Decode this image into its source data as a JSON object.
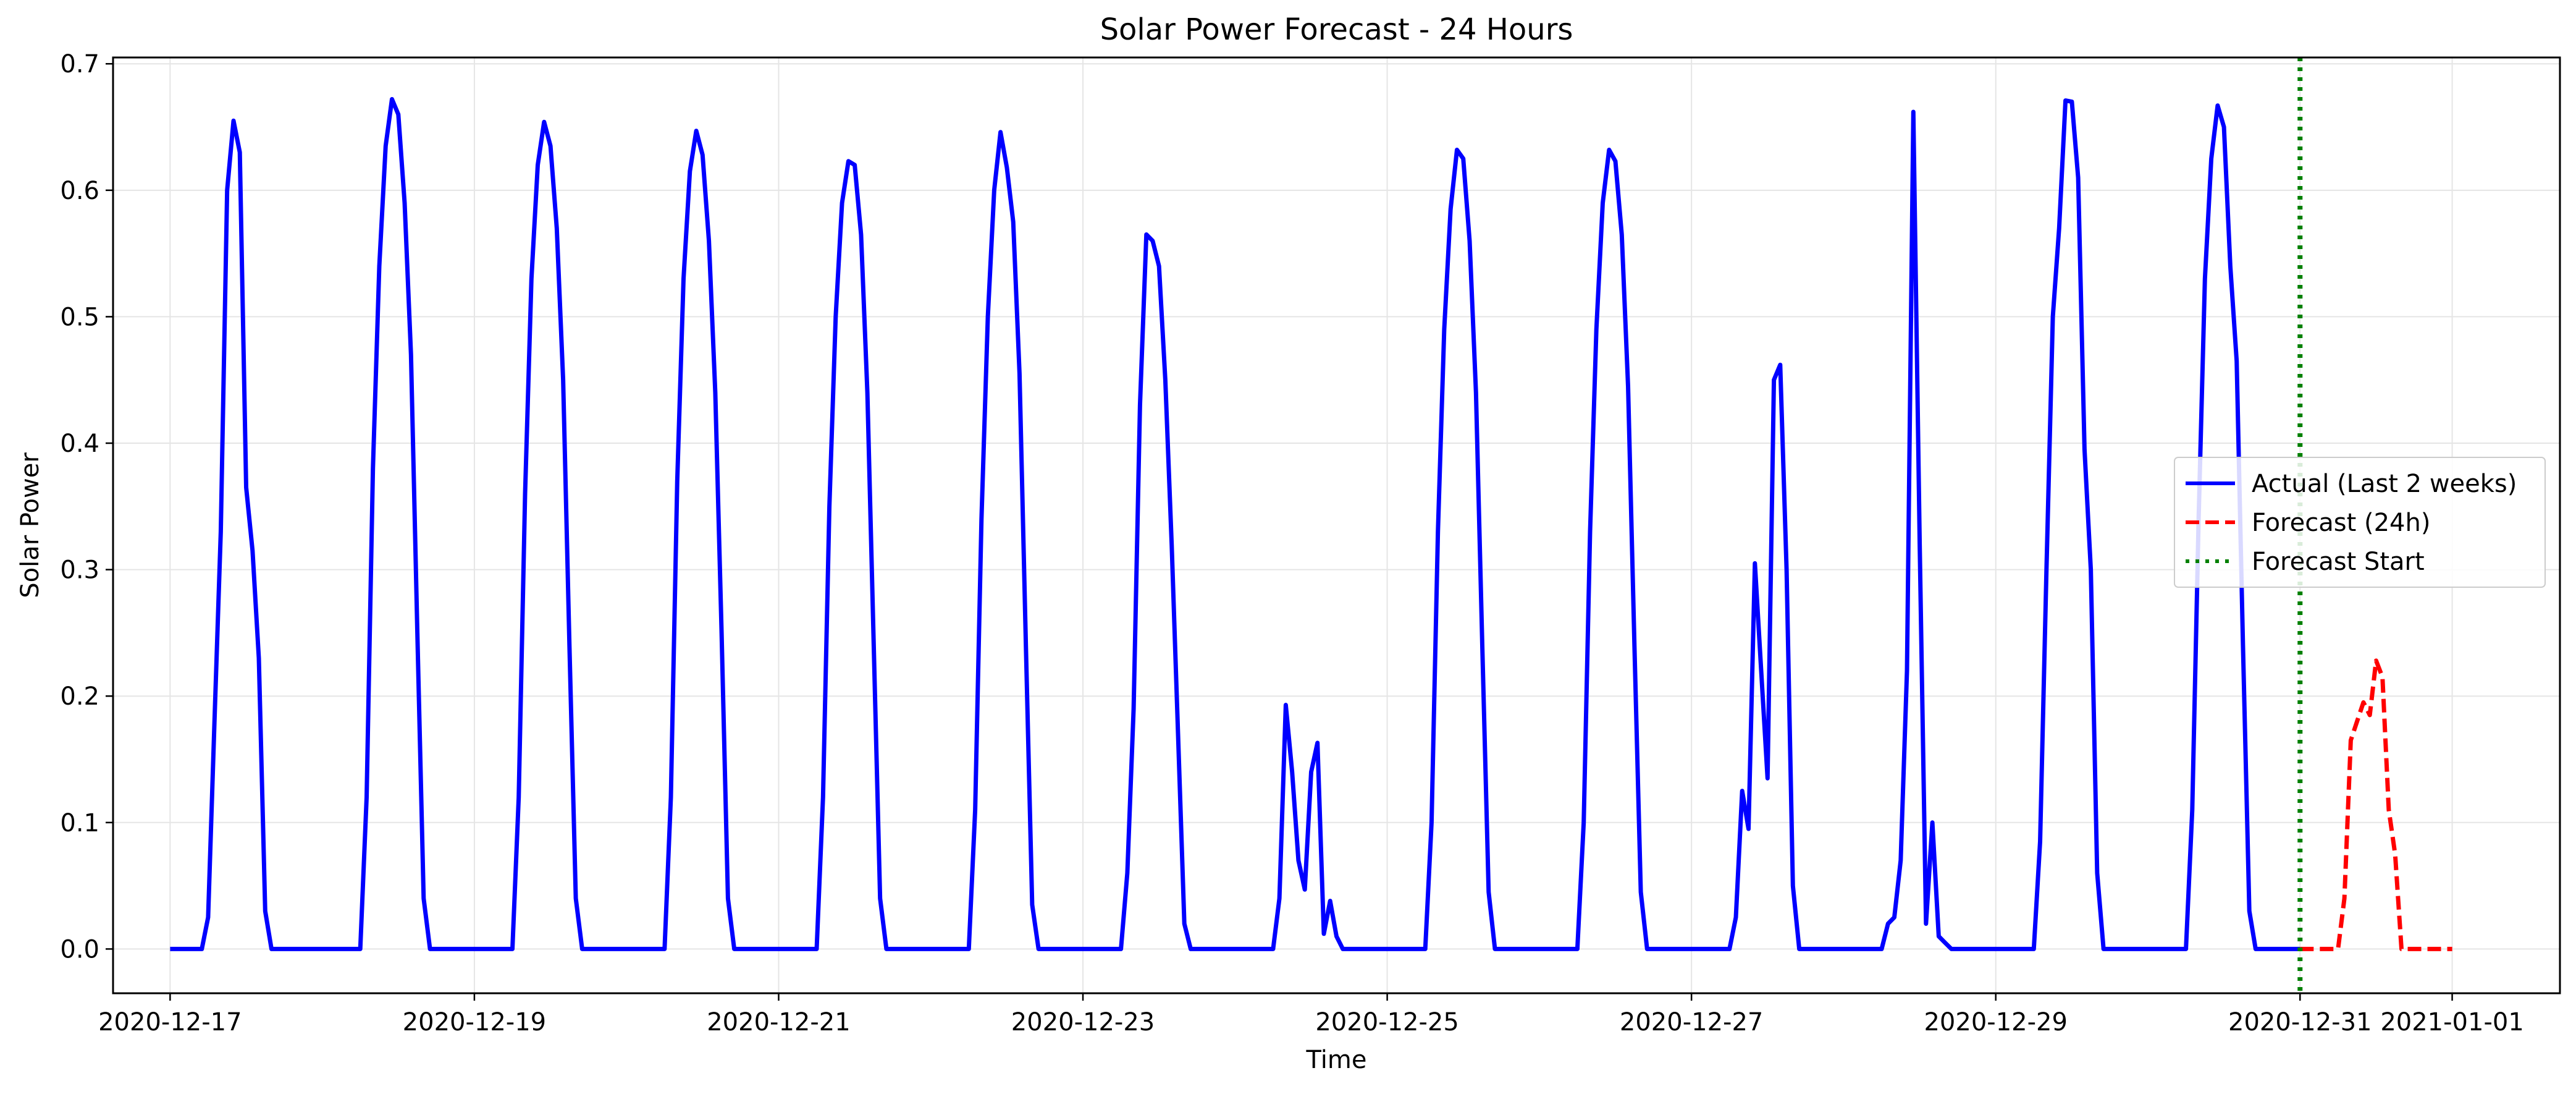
{
  "chart_data": {
    "type": "line",
    "title": "Solar Power Forecast - 24 Hours",
    "xlabel": "Time",
    "ylabel": "Solar Power",
    "xlim": [
      "2020-12-16 15:00",
      "2021-01-01 17:00"
    ],
    "ylim": [
      -0.035,
      0.705
    ],
    "x_ticks": [
      "2020-12-17",
      "2020-12-19",
      "2020-12-21",
      "2020-12-23",
      "2020-12-25",
      "2020-12-27",
      "2020-12-29",
      "2020-12-31",
      "2021-01-01"
    ],
    "y_ticks": [
      "0.0",
      "0.1",
      "0.2",
      "0.3",
      "0.4",
      "0.5",
      "0.6",
      "0.7"
    ],
    "grid": true,
    "legend_position": "center-right",
    "series": [
      {
        "name": "Actual (Last 2 weeks)",
        "color": "#0000ff",
        "style": "solid",
        "points": [
          [
            "2020-12-17 00:00",
            0.0
          ],
          [
            "2020-12-17 05:00",
            0.0
          ],
          [
            "2020-12-17 06:00",
            0.025
          ],
          [
            "2020-12-17 07:00",
            0.18
          ],
          [
            "2020-12-17 08:00",
            0.33
          ],
          [
            "2020-12-17 09:00",
            0.6
          ],
          [
            "2020-12-17 10:00",
            0.655
          ],
          [
            "2020-12-17 11:00",
            0.63
          ],
          [
            "2020-12-17 12:00",
            0.365
          ],
          [
            "2020-12-17 13:00",
            0.315
          ],
          [
            "2020-12-17 14:00",
            0.23
          ],
          [
            "2020-12-17 15:00",
            0.03
          ],
          [
            "2020-12-17 16:00",
            0.0
          ],
          [
            "2020-12-18 06:00",
            0.0
          ],
          [
            "2020-12-18 07:00",
            0.12
          ],
          [
            "2020-12-18 08:00",
            0.38
          ],
          [
            "2020-12-18 09:00",
            0.54
          ],
          [
            "2020-12-18 10:00",
            0.635
          ],
          [
            "2020-12-18 11:00",
            0.672
          ],
          [
            "2020-12-18 12:00",
            0.66
          ],
          [
            "2020-12-18 13:00",
            0.59
          ],
          [
            "2020-12-18 14:00",
            0.47
          ],
          [
            "2020-12-18 15:00",
            0.25
          ],
          [
            "2020-12-18 16:00",
            0.04
          ],
          [
            "2020-12-18 17:00",
            0.0
          ],
          [
            "2020-12-19 06:00",
            0.0
          ],
          [
            "2020-12-19 07:00",
            0.12
          ],
          [
            "2020-12-19 08:00",
            0.36
          ],
          [
            "2020-12-19 09:00",
            0.53
          ],
          [
            "2020-12-19 10:00",
            0.62
          ],
          [
            "2020-12-19 11:00",
            0.654
          ],
          [
            "2020-12-19 12:00",
            0.635
          ],
          [
            "2020-12-19 13:00",
            0.57
          ],
          [
            "2020-12-19 14:00",
            0.45
          ],
          [
            "2020-12-19 15:00",
            0.24
          ],
          [
            "2020-12-19 16:00",
            0.04
          ],
          [
            "2020-12-19 17:00",
            0.0
          ],
          [
            "2020-12-20 06:00",
            0.0
          ],
          [
            "2020-12-20 07:00",
            0.12
          ],
          [
            "2020-12-20 08:00",
            0.37
          ],
          [
            "2020-12-20 09:00",
            0.53
          ],
          [
            "2020-12-20 10:00",
            0.615
          ],
          [
            "2020-12-20 11:00",
            0.647
          ],
          [
            "2020-12-20 12:00",
            0.628
          ],
          [
            "2020-12-20 13:00",
            0.56
          ],
          [
            "2020-12-20 14:00",
            0.44
          ],
          [
            "2020-12-20 15:00",
            0.25
          ],
          [
            "2020-12-20 16:00",
            0.04
          ],
          [
            "2020-12-20 17:00",
            0.0
          ],
          [
            "2020-12-21 06:00",
            0.0
          ],
          [
            "2020-12-21 07:00",
            0.12
          ],
          [
            "2020-12-21 08:00",
            0.35
          ],
          [
            "2020-12-21 09:00",
            0.5
          ],
          [
            "2020-12-21 10:00",
            0.59
          ],
          [
            "2020-12-21 11:00",
            0.623
          ],
          [
            "2020-12-21 12:00",
            0.62
          ],
          [
            "2020-12-21 13:00",
            0.565
          ],
          [
            "2020-12-21 14:00",
            0.44
          ],
          [
            "2020-12-21 15:00",
            0.24
          ],
          [
            "2020-12-21 16:00",
            0.04
          ],
          [
            "2020-12-21 17:00",
            0.0
          ],
          [
            "2020-12-22 06:00",
            0.0
          ],
          [
            "2020-12-22 07:00",
            0.11
          ],
          [
            "2020-12-22 08:00",
            0.34
          ],
          [
            "2020-12-22 09:00",
            0.5
          ],
          [
            "2020-12-22 10:00",
            0.6
          ],
          [
            "2020-12-22 11:00",
            0.646
          ],
          [
            "2020-12-22 12:00",
            0.618
          ],
          [
            "2020-12-22 13:00",
            0.575
          ],
          [
            "2020-12-22 14:00",
            0.455
          ],
          [
            "2020-12-22 15:00",
            0.24
          ],
          [
            "2020-12-22 16:00",
            0.035
          ],
          [
            "2020-12-22 17:00",
            0.0
          ],
          [
            "2020-12-23 06:00",
            0.0
          ],
          [
            "2020-12-23 07:00",
            0.06
          ],
          [
            "2020-12-23 08:00",
            0.19
          ],
          [
            "2020-12-23 09:00",
            0.43
          ],
          [
            "2020-12-23 10:00",
            0.565
          ],
          [
            "2020-12-23 11:00",
            0.56
          ],
          [
            "2020-12-23 12:00",
            0.54
          ],
          [
            "2020-12-23 13:00",
            0.45
          ],
          [
            "2020-12-23 14:00",
            0.32
          ],
          [
            "2020-12-23 15:00",
            0.17
          ],
          [
            "2020-12-23 16:00",
            0.02
          ],
          [
            "2020-12-23 17:00",
            0.0
          ],
          [
            "2020-12-24 06:00",
            0.0
          ],
          [
            "2020-12-24 07:00",
            0.04
          ],
          [
            "2020-12-24 08:00",
            0.193
          ],
          [
            "2020-12-24 09:00",
            0.14
          ],
          [
            "2020-12-24 10:00",
            0.07
          ],
          [
            "2020-12-24 11:00",
            0.047
          ],
          [
            "2020-12-24 12:00",
            0.14
          ],
          [
            "2020-12-24 13:00",
            0.163
          ],
          [
            "2020-12-24 14:00",
            0.012
          ],
          [
            "2020-12-24 15:00",
            0.038
          ],
          [
            "2020-12-24 16:00",
            0.01
          ],
          [
            "2020-12-24 17:00",
            0.0
          ],
          [
            "2020-12-25 06:00",
            0.0
          ],
          [
            "2020-12-25 07:00",
            0.1
          ],
          [
            "2020-12-25 08:00",
            0.33
          ],
          [
            "2020-12-25 09:00",
            0.49
          ],
          [
            "2020-12-25 10:00",
            0.585
          ],
          [
            "2020-12-25 11:00",
            0.632
          ],
          [
            "2020-12-25 12:00",
            0.625
          ],
          [
            "2020-12-25 13:00",
            0.56
          ],
          [
            "2020-12-25 14:00",
            0.44
          ],
          [
            "2020-12-25 15:00",
            0.24
          ],
          [
            "2020-12-25 16:00",
            0.045
          ],
          [
            "2020-12-25 17:00",
            0.0
          ],
          [
            "2020-12-26 06:00",
            0.0
          ],
          [
            "2020-12-26 07:00",
            0.1
          ],
          [
            "2020-12-26 08:00",
            0.33
          ],
          [
            "2020-12-26 09:00",
            0.49
          ],
          [
            "2020-12-26 10:00",
            0.59
          ],
          [
            "2020-12-26 11:00",
            0.632
          ],
          [
            "2020-12-26 12:00",
            0.623
          ],
          [
            "2020-12-26 13:00",
            0.565
          ],
          [
            "2020-12-26 14:00",
            0.445
          ],
          [
            "2020-12-26 15:00",
            0.24
          ],
          [
            "2020-12-26 16:00",
            0.045
          ],
          [
            "2020-12-26 17:00",
            0.0
          ],
          [
            "2020-12-27 06:00",
            0.0
          ],
          [
            "2020-12-27 07:00",
            0.025
          ],
          [
            "2020-12-27 08:00",
            0.125
          ],
          [
            "2020-12-27 09:00",
            0.095
          ],
          [
            "2020-12-27 10:00",
            0.305
          ],
          [
            "2020-12-27 11:00",
            0.22
          ],
          [
            "2020-12-27 12:00",
            0.135
          ],
          [
            "2020-12-27 13:00",
            0.45
          ],
          [
            "2020-12-27 14:00",
            0.462
          ],
          [
            "2020-12-27 15:00",
            0.3
          ],
          [
            "2020-12-27 16:00",
            0.05
          ],
          [
            "2020-12-27 17:00",
            0.0
          ],
          [
            "2020-12-28 06:00",
            0.0
          ],
          [
            "2020-12-28 07:00",
            0.02
          ],
          [
            "2020-12-28 08:00",
            0.025
          ],
          [
            "2020-12-28 09:00",
            0.07
          ],
          [
            "2020-12-28 10:00",
            0.22
          ],
          [
            "2020-12-28 11:00",
            0.662
          ],
          [
            "2020-12-28 12:00",
            0.32
          ],
          [
            "2020-12-28 13:00",
            0.02
          ],
          [
            "2020-12-28 14:00",
            0.1
          ],
          [
            "2020-12-28 15:00",
            0.01
          ],
          [
            "2020-12-28 16:00",
            0.005
          ],
          [
            "2020-12-28 17:00",
            0.0
          ],
          [
            "2020-12-29 06:00",
            0.0
          ],
          [
            "2020-12-29 07:00",
            0.085
          ],
          [
            "2020-12-29 08:00",
            0.3
          ],
          [
            "2020-12-29 09:00",
            0.5
          ],
          [
            "2020-12-29 10:00",
            0.57
          ],
          [
            "2020-12-29 11:00",
            0.671
          ],
          [
            "2020-12-29 12:00",
            0.67
          ],
          [
            "2020-12-29 13:00",
            0.61
          ],
          [
            "2020-12-29 14:00",
            0.395
          ],
          [
            "2020-12-29 15:00",
            0.3
          ],
          [
            "2020-12-29 16:00",
            0.06
          ],
          [
            "2020-12-29 17:00",
            0.0
          ],
          [
            "2020-12-30 06:00",
            0.0
          ],
          [
            "2020-12-30 07:00",
            0.11
          ],
          [
            "2020-12-30 08:00",
            0.34
          ],
          [
            "2020-12-30 09:00",
            0.53
          ],
          [
            "2020-12-30 10:00",
            0.625
          ],
          [
            "2020-12-30 11:00",
            0.667
          ],
          [
            "2020-12-30 12:00",
            0.65
          ],
          [
            "2020-12-30 13:00",
            0.54
          ],
          [
            "2020-12-30 14:00",
            0.465
          ],
          [
            "2020-12-30 15:00",
            0.24
          ],
          [
            "2020-12-30 16:00",
            0.03
          ],
          [
            "2020-12-30 17:00",
            0.0
          ],
          [
            "2020-12-31 00:00",
            0.0
          ]
        ]
      },
      {
        "name": "Forecast (24h)",
        "color": "#ff0000",
        "style": "dashed",
        "points": [
          [
            "2020-12-31 00:00",
            0.0
          ],
          [
            "2020-12-31 06:00",
            0.0
          ],
          [
            "2020-12-31 07:00",
            0.04
          ],
          [
            "2020-12-31 08:00",
            0.165
          ],
          [
            "2020-12-31 09:00",
            0.18
          ],
          [
            "2020-12-31 10:00",
            0.195
          ],
          [
            "2020-12-31 11:00",
            0.185
          ],
          [
            "2020-12-31 12:00",
            0.228
          ],
          [
            "2020-12-31 13:00",
            0.215
          ],
          [
            "2020-12-31 14:00",
            0.11
          ],
          [
            "2020-12-31 15:00",
            0.075
          ],
          [
            "2020-12-31 16:00",
            0.0
          ],
          [
            "2020-12-31 18:00",
            0.0
          ],
          [
            "2021-01-01 00:00",
            0.0
          ]
        ]
      }
    ],
    "reference_lines": [
      {
        "name": "Forecast Start",
        "x": "2020-12-31 00:00",
        "color": "#008000",
        "style": "dotted"
      }
    ]
  }
}
